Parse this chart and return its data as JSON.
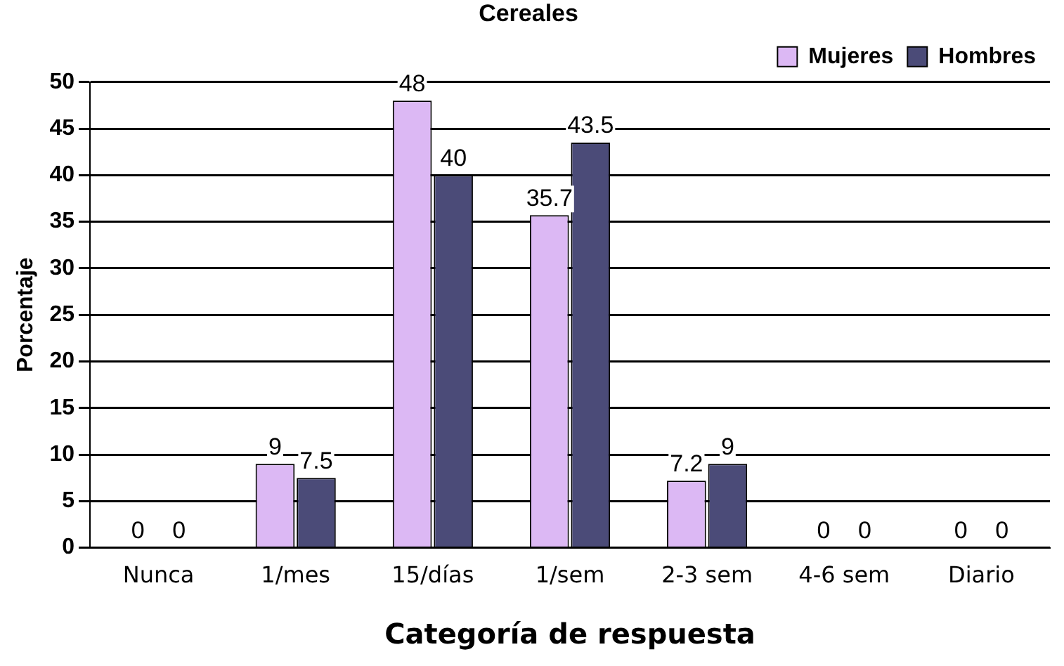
{
  "chart_data": {
    "type": "bar",
    "title": "Cereales",
    "xlabel": "Categoría de respuesta",
    "ylabel": "Porcentaje",
    "categories": [
      "Nunca",
      "1/mes",
      "15/días",
      "1/sem",
      "2-3 sem",
      "4-6 sem",
      "Diario"
    ],
    "series": [
      {
        "name": "Mujeres",
        "color": "#dcb8f4",
        "values": [
          0,
          9,
          48,
          35.7,
          7.2,
          0,
          0
        ]
      },
      {
        "name": "Hombres",
        "color": "#4b4b78",
        "values": [
          0,
          7.5,
          40,
          43.5,
          9,
          0,
          0
        ]
      }
    ],
    "ylim": [
      0,
      50
    ],
    "yticks": [
      0,
      5,
      10,
      15,
      20,
      25,
      30,
      35,
      40,
      45,
      50
    ],
    "grid": "y",
    "legend": "top right",
    "data_labels": true
  }
}
